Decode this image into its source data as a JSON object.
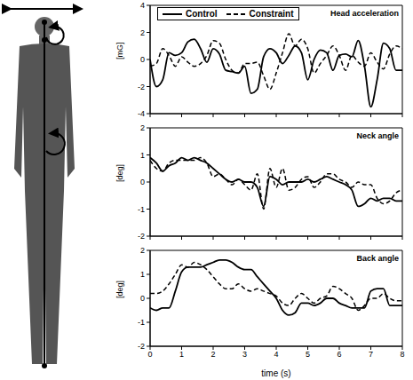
{
  "chart_data": [
    {
      "type": "line",
      "title": "Head acceleration",
      "y_label": "[mG]",
      "legend": "upper left",
      "tick_labels": "y",
      "xlim": [
        0,
        8
      ],
      "xticks": [
        0,
        1,
        2,
        3,
        4,
        5,
        6,
        7,
        8
      ],
      "ylim": [
        -4,
        4
      ],
      "yticks": [
        -4,
        -2,
        0,
        2,
        4
      ],
      "x": [
        0,
        0.2,
        0.4,
        0.6,
        0.8,
        1,
        1.2,
        1.4,
        1.6,
        1.8,
        2,
        2.2,
        2.4,
        2.6,
        2.8,
        3,
        3.2,
        3.4,
        3.6,
        3.8,
        4,
        4.2,
        4.4,
        4.6,
        4.8,
        5,
        5.2,
        5.4,
        5.6,
        5.8,
        6,
        6.2,
        6.4,
        6.6,
        6.8,
        7,
        7.2,
        7.4,
        7.6,
        7.8,
        8
      ],
      "series": [
        {
          "name": "Control",
          "color": "#000000",
          "line_style": "solid",
          "values": [
            0,
            -2,
            -1.5,
            0.5,
            0.3,
            0.5,
            1.3,
            1.5,
            0.8,
            -0.2,
            0.8,
            0.4,
            -0.8,
            -0.9,
            -1.0,
            -0.5,
            -2.5,
            -2.2,
            0.2,
            0.8,
            0.5,
            -0.3,
            0.3,
            1.0,
            0.5,
            -1.5,
            0,
            0.7,
            0.5,
            -0.8,
            0.3,
            0.4,
            0.2,
            1.4,
            -0.5,
            -3.5,
            -1.5,
            1.2,
            0.8,
            -0.8,
            -0.8
          ]
        },
        {
          "name": "Constraint",
          "color": "#000000",
          "line_style": "dashed",
          "values": [
            -0.5,
            -0.3,
            0.8,
            0.3,
            -0.5,
            0.2,
            -0.2,
            -0.5,
            -0.3,
            0.3,
            1.4,
            1.2,
            0,
            -0.8,
            -1.0,
            -0.3,
            -0.3,
            -0.2,
            -1.2,
            -2.2,
            -1.0,
            0.5,
            1.9,
            1.0,
            1.5,
            0.8,
            -1.0,
            -0.3,
            0.3,
            1.0,
            0.3,
            -0.8,
            0.3,
            -0.2,
            -0.5,
            0.5,
            -0.2,
            -0.7,
            0.4,
            1.0,
            0.8
          ]
        }
      ]
    },
    {
      "type": "line",
      "title": "Neck angle",
      "y_label": "[deg]",
      "tick_labels": "y",
      "xlim": [
        0,
        8
      ],
      "xticks": [
        0,
        1,
        2,
        3,
        4,
        5,
        6,
        7,
        8
      ],
      "ylim": [
        -2,
        2
      ],
      "yticks": [
        -2,
        -1,
        0,
        1,
        2
      ],
      "x": [
        0,
        0.2,
        0.4,
        0.6,
        0.8,
        1,
        1.2,
        1.4,
        1.6,
        1.8,
        2,
        2.2,
        2.4,
        2.6,
        2.8,
        3,
        3.2,
        3.4,
        3.6,
        3.8,
        4,
        4.2,
        4.4,
        4.6,
        4.8,
        5,
        5.2,
        5.4,
        5.6,
        5.8,
        6,
        6.2,
        6.4,
        6.6,
        6.8,
        7,
        7.2,
        7.4,
        7.6,
        7.8,
        8
      ],
      "series": [
        {
          "name": "Control",
          "color": "#000000",
          "line_style": "solid",
          "values": [
            0.9,
            0.7,
            0.4,
            0.6,
            0.7,
            0.9,
            0.8,
            0.9,
            0.8,
            0.7,
            0.5,
            0.3,
            0.1,
            0,
            0.1,
            0,
            0,
            -0.2,
            -0.9,
            0.2,
            0.1,
            -0.1,
            0,
            0,
            0,
            0.1,
            0,
            0.1,
            0.2,
            0.1,
            0,
            -0.1,
            -0.3,
            -0.9,
            -0.8,
            -0.6,
            -0.7,
            -0.6,
            -0.6,
            -0.7,
            -0.7
          ]
        },
        {
          "name": "Constraint",
          "color": "#000000",
          "line_style": "dashed",
          "values": [
            0.8,
            0.5,
            0.4,
            0.7,
            0.8,
            0.8,
            0.8,
            0.8,
            0.9,
            0.7,
            0.2,
            0.3,
            0.1,
            -0.1,
            0.1,
            -0.1,
            -0.3,
            0.3,
            -1.0,
            0.5,
            -0.2,
            0.5,
            -0.3,
            -0.2,
            0.1,
            0.2,
            -0.2,
            0,
            0.3,
            0.3,
            0.1,
            0,
            -0.2,
            0,
            -0.1,
            -0.1,
            -0.6,
            -0.8,
            -0.7,
            -0.4,
            -0.3
          ]
        }
      ]
    },
    {
      "type": "line",
      "title": "Back angle",
      "y_label": "[deg]",
      "x_label": "time (s)",
      "xlim": [
        0,
        8
      ],
      "xticks": [
        0,
        1,
        2,
        3,
        4,
        5,
        6,
        7,
        8
      ],
      "ylim": [
        -2,
        2
      ],
      "yticks": [
        -2,
        -1,
        0,
        1,
        2
      ],
      "x": [
        0,
        0.2,
        0.4,
        0.6,
        0.8,
        1,
        1.2,
        1.4,
        1.6,
        1.8,
        2,
        2.2,
        2.4,
        2.6,
        2.8,
        3,
        3.2,
        3.4,
        3.6,
        3.8,
        4,
        4.2,
        4.4,
        4.6,
        4.8,
        5,
        5.2,
        5.4,
        5.6,
        5.8,
        6,
        6.2,
        6.4,
        6.6,
        6.8,
        7,
        7.2,
        7.4,
        7.6,
        7.8,
        8
      ],
      "series": [
        {
          "name": "Control",
          "color": "#000000",
          "line_style": "solid",
          "values": [
            -0.4,
            -0.5,
            -0.4,
            -0.4,
            0.3,
            1.1,
            1.3,
            1.3,
            1.3,
            1.4,
            1.5,
            1.6,
            1.6,
            1.5,
            1.3,
            1.2,
            1.2,
            0.9,
            0.6,
            0.3,
            0,
            -0.5,
            -0.7,
            -0.6,
            -0.2,
            -0.2,
            -0.3,
            -0.2,
            0,
            0,
            -0.2,
            -0.3,
            -0.4,
            -0.4,
            -0.4,
            0.3,
            0.4,
            0.4,
            -0.3,
            -0.3,
            -0.3
          ]
        },
        {
          "name": "Constraint",
          "color": "#000000",
          "line_style": "dashed",
          "values": [
            0.2,
            0.2,
            0.3,
            0.6,
            1.0,
            1.4,
            1.3,
            1.5,
            1.4,
            1.2,
            0.9,
            0.6,
            0.4,
            0.4,
            0.6,
            0.4,
            0.3,
            0.4,
            0.3,
            0.2,
            0.1,
            -0.2,
            -0.3,
            0,
            0.2,
            0,
            -0.2,
            0,
            0.1,
            0.5,
            0.4,
            0.2,
            0,
            -0.5,
            -0.3,
            0,
            0,
            0.2,
            0,
            -0.1,
            -0.1
          ]
        }
      ]
    }
  ]
}
